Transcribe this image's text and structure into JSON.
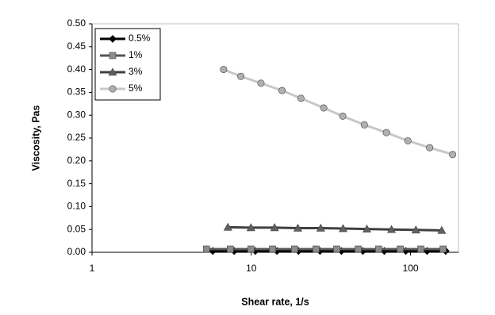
{
  "chart_data": {
    "type": "line",
    "x_label": "Shear rate, 1/s",
    "y_label": "Viscosity, Pas",
    "xscale": "log",
    "xlim": [
      1,
      200
    ],
    "xticks": [
      1,
      10,
      100
    ],
    "ylim": [
      0,
      0.5
    ],
    "yticks": [
      {
        "value": 0,
        "label": "0.00"
      },
      0.05,
      {
        "value": 0.1,
        "label": "0.10"
      },
      0.15,
      {
        "value": 0.2,
        "label": "0.20"
      },
      0.25,
      {
        "value": 0.3,
        "label": "0.30"
      },
      0.35,
      {
        "value": 0.4,
        "label": "0.40"
      },
      0.45,
      {
        "value": 0.5,
        "label": "0.50"
      }
    ],
    "legend": "upper left",
    "series": [
      {
        "name": "0.5%",
        "color": "#000000",
        "marker": "diamond",
        "marker_color": "#000000",
        "x": [
          5.73,
          7.81,
          10.6,
          14.5,
          19.8,
          27.0,
          36.8,
          50.2,
          68.4,
          93.3,
          127,
          166
        ],
        "values": [
          0.003,
          0.003,
          0.003,
          0.003,
          0.003,
          0.003,
          0.003,
          0.003,
          0.003,
          0.003,
          0.003,
          0.003
        ]
      },
      {
        "name": "1%",
        "color": "#555555",
        "marker": "square",
        "marker_color": "#8c8c8c",
        "x": [
          5.23,
          7.38,
          9.95,
          13.6,
          18.7,
          25.5,
          34.4,
          46.9,
          63.1,
          86.1,
          116,
          160
        ],
        "values": [
          0.007,
          0.007,
          0.007,
          0.007,
          0.007,
          0.007,
          0.007,
          0.007,
          0.007,
          0.007,
          0.007,
          0.007
        ]
      },
      {
        "name": "3%",
        "color": "#404040",
        "marker": "triangle",
        "marker_color": "#606060",
        "x": [
          7.13,
          9.95,
          14.0,
          19.6,
          27.3,
          37.7,
          53.2,
          75.9,
          108,
          157
        ],
        "values": [
          0.055,
          0.054,
          0.054,
          0.053,
          0.053,
          0.052,
          0.051,
          0.05,
          0.049,
          0.048
        ]
      },
      {
        "name": "5%",
        "color": "#c8c8c8",
        "marker": "circle",
        "marker_color": "#b0b0b0",
        "x": [
          6.7,
          8.6,
          11.5,
          15.6,
          20.5,
          28.5,
          37.5,
          51.3,
          70.5,
          96.2,
          131.8,
          183.7
        ],
        "values": [
          0.4,
          0.385,
          0.37,
          0.354,
          0.337,
          0.316,
          0.298,
          0.279,
          0.262,
          0.244,
          0.229,
          0.214
        ]
      }
    ]
  }
}
